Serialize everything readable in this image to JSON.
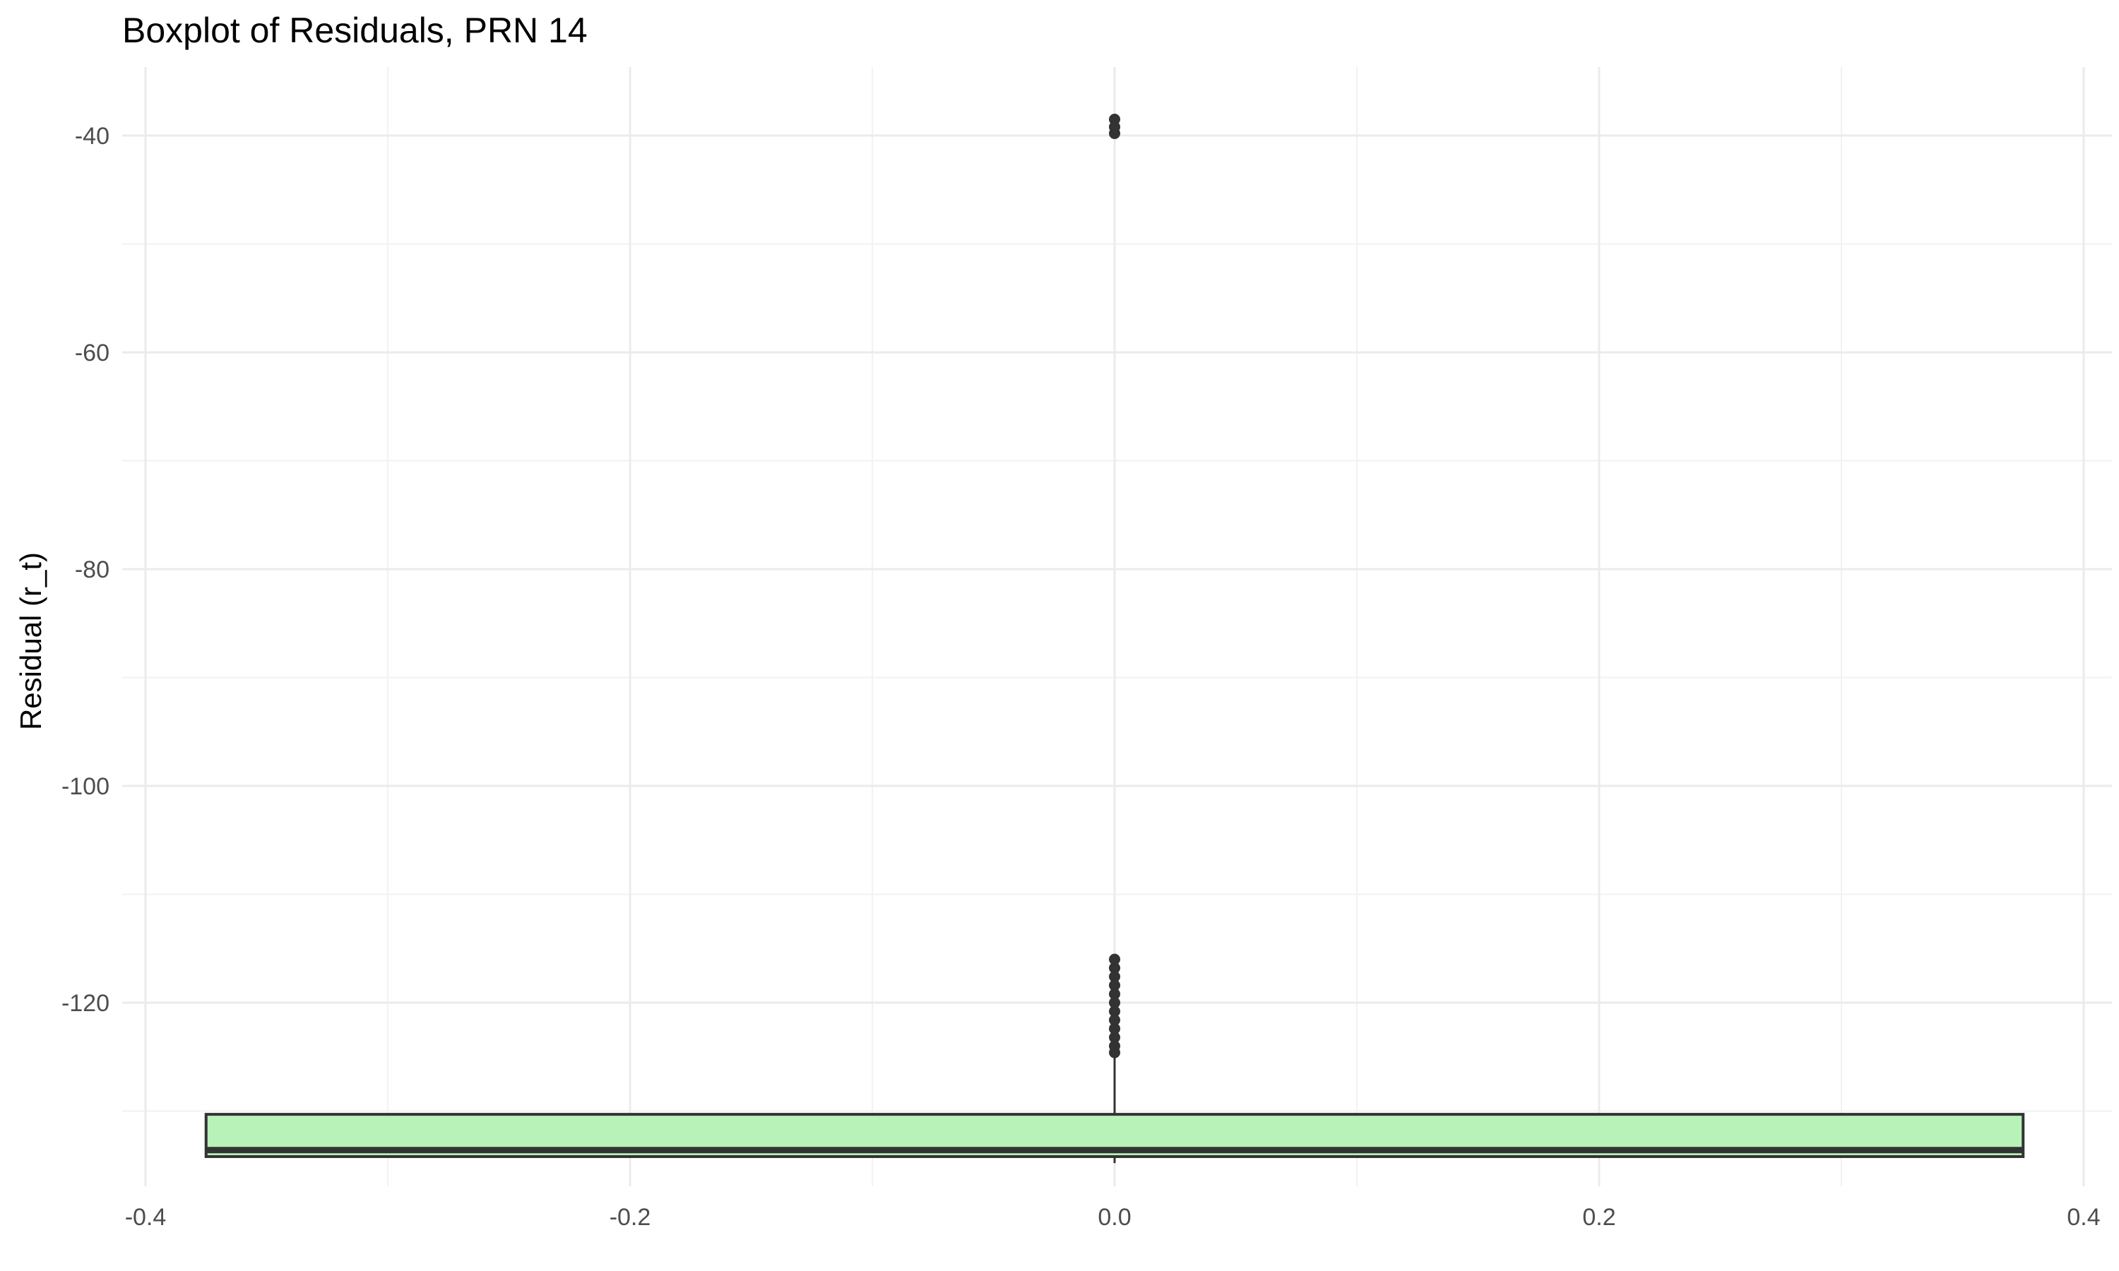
{
  "chart_data": {
    "type": "boxplot",
    "title": "Boxplot of Residuals, PRN 14",
    "xlabel": "",
    "ylabel": "Residual (r_t)",
    "xlim": [
      -0.4,
      0.4
    ],
    "ylim": [
      -135,
      -38
    ],
    "x_ticks": [
      -0.4,
      -0.2,
      0.0,
      0.2,
      0.4
    ],
    "x_tick_labels": [
      "-0.4",
      "-0.2",
      "0.0",
      "0.2",
      "0.4"
    ],
    "y_ticks": [
      -40,
      -60,
      -80,
      -100,
      -120
    ],
    "y_tick_labels": [
      "-40",
      "-60",
      "-80",
      "-100",
      "-120"
    ],
    "grid": true,
    "box": {
      "x": 0.0,
      "x_range": [
        -0.375,
        0.375
      ],
      "q1": -134.2,
      "median": -133.6,
      "q3": -130.3,
      "whisker_low": -134.8,
      "whisker_high": -125.0,
      "fill_color": "#b8f2b8",
      "outline_color": "#333333"
    },
    "outliers": [
      {
        "x": 0.0,
        "y": -38.5
      },
      {
        "x": 0.0,
        "y": -39.2
      },
      {
        "x": 0.0,
        "y": -39.8
      },
      {
        "x": 0.0,
        "y": -116.0
      },
      {
        "x": 0.0,
        "y": -116.8
      },
      {
        "x": 0.0,
        "y": -117.6
      },
      {
        "x": 0.0,
        "y": -118.4
      },
      {
        "x": 0.0,
        "y": -119.2
      },
      {
        "x": 0.0,
        "y": -120.0
      },
      {
        "x": 0.0,
        "y": -120.8
      },
      {
        "x": 0.0,
        "y": -121.6
      },
      {
        "x": 0.0,
        "y": -122.4
      },
      {
        "x": 0.0,
        "y": -123.2
      },
      {
        "x": 0.0,
        "y": -124.0
      },
      {
        "x": 0.0,
        "y": -124.6
      }
    ],
    "colors": {
      "grid_major": "#ebebeb",
      "grid_minor": "#f2f2f2",
      "point": "#333333"
    }
  }
}
